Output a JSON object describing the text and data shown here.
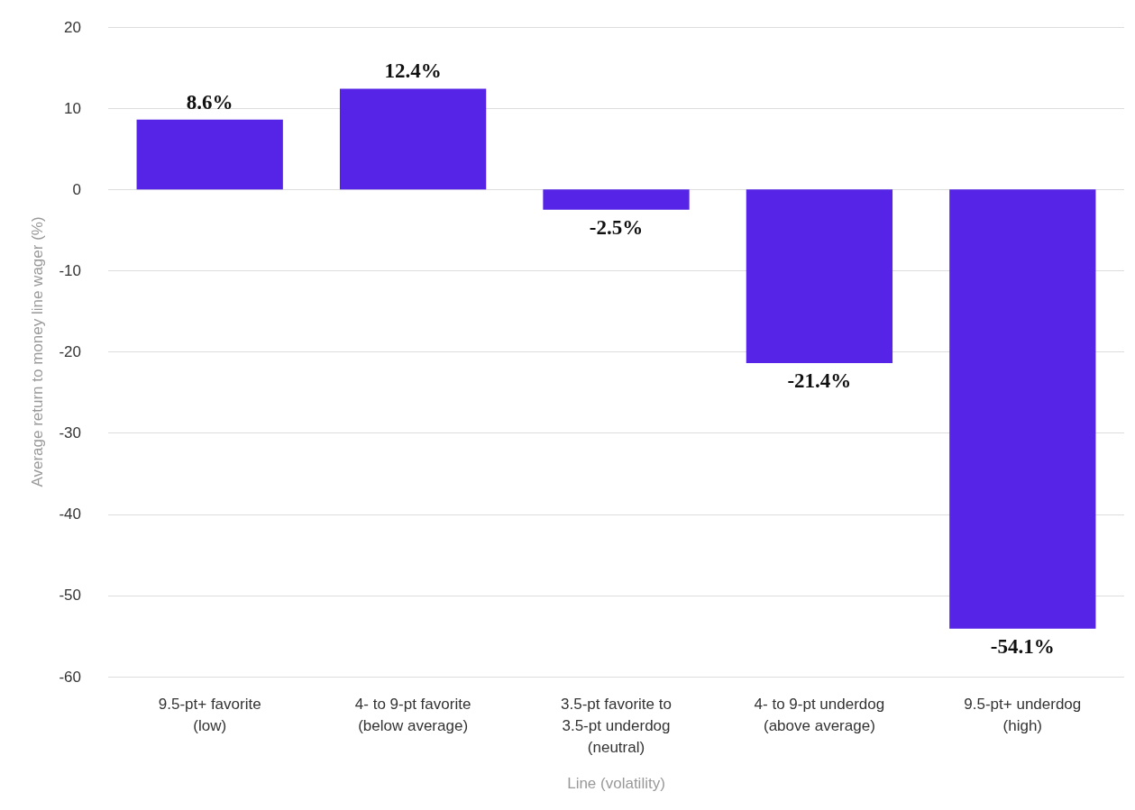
{
  "chart_data": {
    "type": "bar",
    "xlabel": "Line (volatility)",
    "ylabel": "Average return to money line wager (%)",
    "categories": [
      "9.5-pt+ favorite\n(low)",
      "4- to 9-pt favorite\n(below average)",
      "3.5-pt favorite to\n3.5-pt underdog\n(neutral)",
      "4- to 9-pt underdog\n(above average)",
      "9.5-pt+ underdog\n(high)"
    ],
    "values": [
      8.6,
      12.4,
      -2.5,
      -21.4,
      -54.1
    ],
    "value_labels": [
      "8.6%",
      "12.4%",
      "-2.5%",
      "-21.4%",
      "-54.1%"
    ],
    "color": "#5524e6",
    "ylim": [
      -60,
      20
    ],
    "yticks": [
      -60,
      -50,
      -40,
      -30,
      -20,
      -10,
      0,
      10,
      20
    ],
    "grid": "y"
  }
}
